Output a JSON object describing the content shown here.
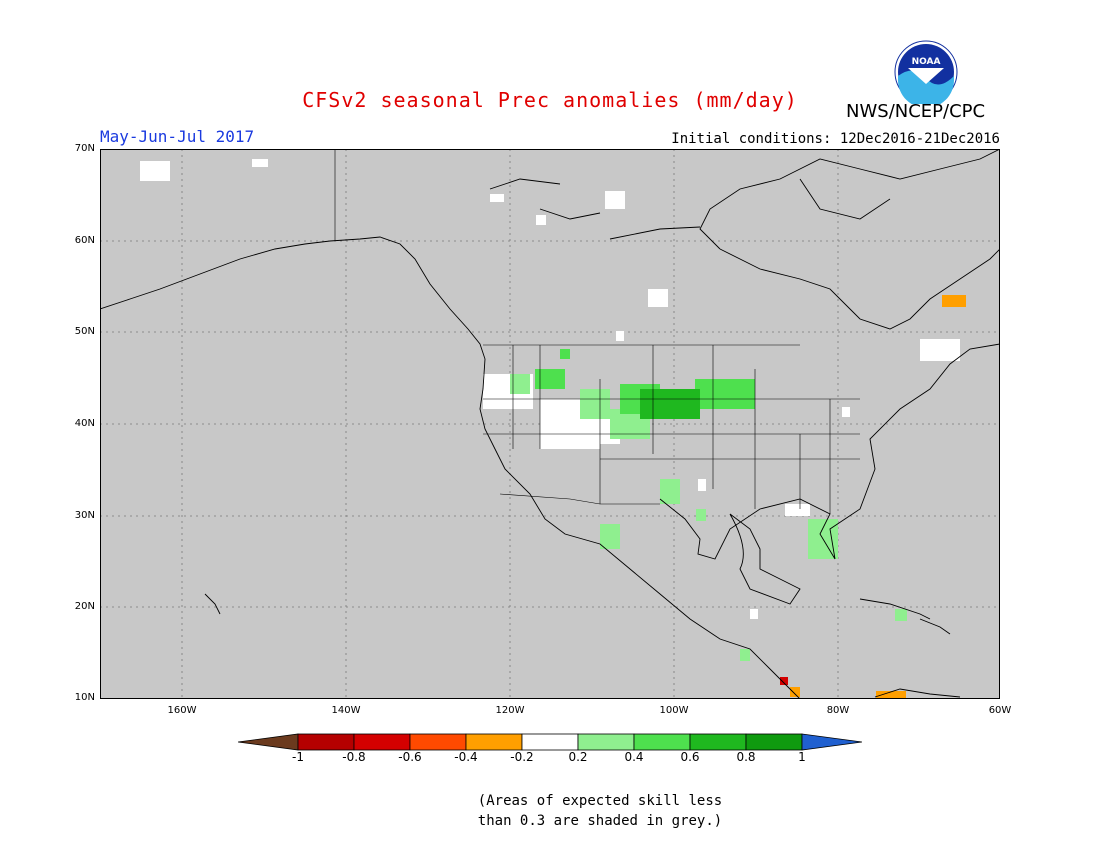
{
  "header": {
    "title": "CFSv2 seasonal Prec anomalies (mm/day)",
    "period": "May-Jun-Jul 2017",
    "initial_conditions": "Initial conditions: 12Dec2016-21Dec2016",
    "agency": "NWS/NCEP/CPC",
    "logo_text": "NOAA"
  },
  "axes": {
    "lat_labels": [
      "70N",
      "60N",
      "50N",
      "40N",
      "30N",
      "20N",
      "10N"
    ],
    "lon_labels": [
      "160W",
      "140W",
      "120W",
      "100W",
      "80W",
      "60W"
    ]
  },
  "legend": {
    "labels": [
      "-1",
      "-0.8",
      "-0.6",
      "-0.4",
      "-0.2",
      "0.2",
      "0.4",
      "0.6",
      "0.8",
      "1"
    ],
    "colors": [
      "#6b3a1e",
      "#b50000",
      "#d40000",
      "#ff4a00",
      "#ff9f00",
      "#ffffff",
      "#8fef8f",
      "#4ee04e",
      "#1fb81f",
      "#0f9a0f",
      "#2060d0"
    ]
  },
  "note": {
    "line1": "(Areas of expected skill less",
    "line2": "than 0.3 are shaded in grey.)"
  },
  "colors": {
    "mask_grey": "#c8c8c8",
    "title_red": "#e00000",
    "period_blue": "#1a3adf"
  }
}
